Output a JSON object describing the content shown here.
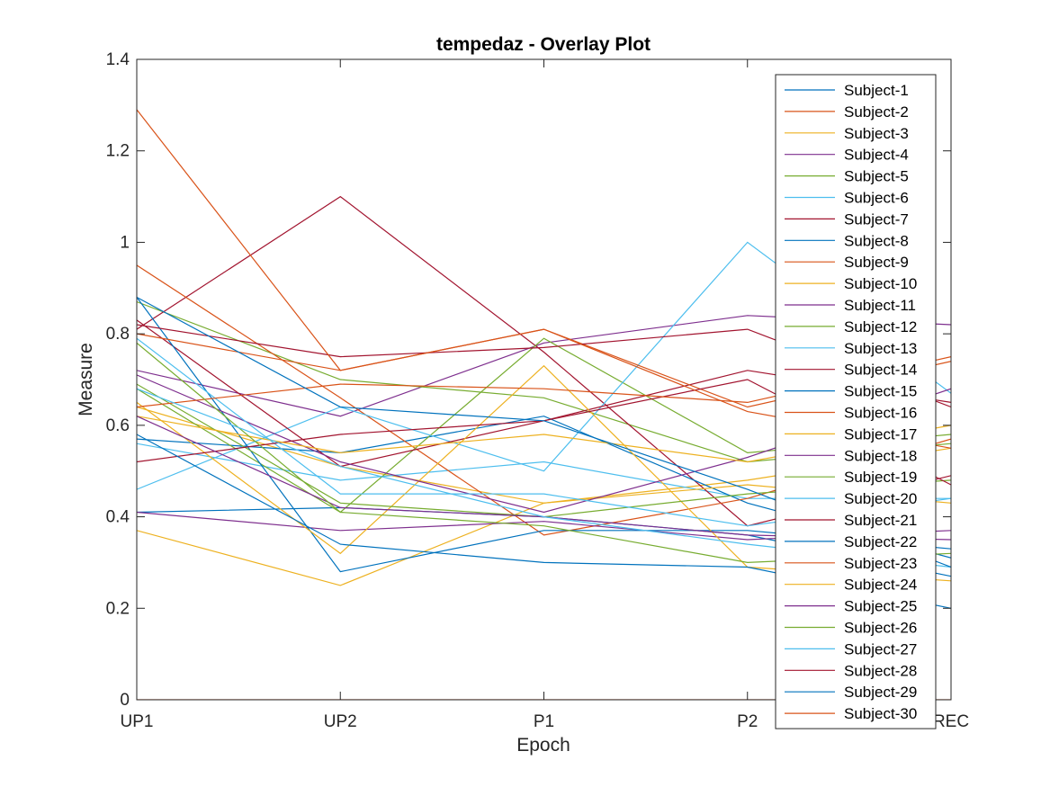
{
  "chart_data": {
    "type": "line",
    "title": "tempedaz - Overlay Plot",
    "xlabel": "Epoch",
    "ylabel": "Measure",
    "categories": [
      "UP1",
      "UP2",
      "P1",
      "P2",
      "REC"
    ],
    "ylim": [
      0,
      1.4
    ],
    "yticks": [
      "0",
      "0.2",
      "0.4",
      "0.6",
      "0.8",
      "1",
      "1.2",
      "1.4"
    ],
    "grid": false,
    "legend_position": "top-right",
    "colors": [
      "#0072BD",
      "#D95319",
      "#EDB120",
      "#7E2F8E",
      "#77AC30",
      "#4DBEEE",
      "#A2142F"
    ],
    "series": [
      {
        "name": "Subject-1",
        "values": [
          0.41,
          0.42,
          0.4,
          0.36,
          0.27
        ]
      },
      {
        "name": "Subject-2",
        "values": [
          0,
          0,
          0,
          0,
          0
        ]
      },
      {
        "name": "Subject-3",
        "values": [
          0.64,
          0.51,
          0.43,
          0.48,
          0.55
        ]
      },
      {
        "name": "Subject-4",
        "values": [
          0.72,
          0.62,
          0.78,
          0.84,
          0.82
        ]
      },
      {
        "name": "Subject-5",
        "values": [
          0.87,
          0.7,
          0.66,
          0.52,
          0.56
        ]
      },
      {
        "name": "Subject-6",
        "values": [
          0.56,
          0.48,
          0.52,
          0.44,
          0.44
        ]
      },
      {
        "name": "Subject-7",
        "values": [
          0.81,
          1.1,
          0.76,
          0.38,
          0.49
        ]
      },
      {
        "name": "Subject-8",
        "values": [
          0.57,
          0.54,
          0.62,
          0.43,
          0.31
        ]
      },
      {
        "name": "Subject-9",
        "values": [
          0.95,
          0.66,
          0.36,
          0.44,
          0.57
        ]
      },
      {
        "name": "Subject-10",
        "values": [
          0.37,
          0.25,
          0.43,
          0.47,
          0.43
        ]
      },
      {
        "name": "Subject-11",
        "values": [
          0.41,
          0.37,
          0.39,
          0.35,
          0.37
        ]
      },
      {
        "name": "Subject-12",
        "values": [
          0.68,
          0.41,
          0.79,
          0.54,
          0.58
        ]
      },
      {
        "name": "Subject-13",
        "values": [
          0.46,
          0.64,
          0.5,
          1.0,
          0.67
        ]
      },
      {
        "name": "Subject-14",
        "values": [
          0.83,
          0.51,
          0.61,
          0.72,
          0.65
        ]
      },
      {
        "name": "Subject-15",
        "values": [
          0.88,
          0.28,
          0.37,
          0.37,
          0.33
        ]
      },
      {
        "name": "Subject-16",
        "values": [
          0.8,
          0.72,
          0.81,
          0.64,
          0.74
        ]
      },
      {
        "name": "Subject-17",
        "values": [
          0.65,
          0.32,
          0.73,
          0.29,
          0.26
        ]
      },
      {
        "name": "Subject-18",
        "values": [
          0.71,
          0.52,
          0.41,
          0.53,
          0.68
        ]
      },
      {
        "name": "Subject-19",
        "values": [
          0.69,
          0.43,
          0.4,
          0.45,
          0.48
        ]
      },
      {
        "name": "Subject-20",
        "values": [
          0.79,
          0.45,
          0.45,
          0.38,
          0.44
        ]
      },
      {
        "name": "Subject-21",
        "values": [
          0.52,
          0.58,
          0.61,
          0.7,
          0.47
        ]
      },
      {
        "name": "Subject-22",
        "values": [
          0.58,
          0.34,
          0.3,
          0.29,
          0.2
        ]
      },
      {
        "name": "Subject-23",
        "values": [
          0.64,
          0.69,
          0.68,
          0.65,
          0.75
        ]
      },
      {
        "name": "Subject-24",
        "values": [
          0.62,
          0.54,
          0.58,
          0.52,
          0.6
        ]
      },
      {
        "name": "Subject-25",
        "values": [
          0.62,
          0.42,
          0.4,
          0.36,
          0.35
        ]
      },
      {
        "name": "Subject-26",
        "values": [
          0.78,
          0.41,
          0.38,
          0.3,
          0.32
        ]
      },
      {
        "name": "Subject-27",
        "values": [
          0.68,
          0.51,
          0.4,
          0.34,
          0.29
        ]
      },
      {
        "name": "Subject-28",
        "values": [
          0.82,
          0.75,
          0.77,
          0.81,
          0.64
        ]
      },
      {
        "name": "Subject-29",
        "values": [
          0.88,
          0.64,
          0.61,
          0.46,
          0.29
        ]
      },
      {
        "name": "Subject-30",
        "values": [
          1.29,
          0.72,
          0.81,
          0.63,
          0.55
        ]
      }
    ]
  }
}
